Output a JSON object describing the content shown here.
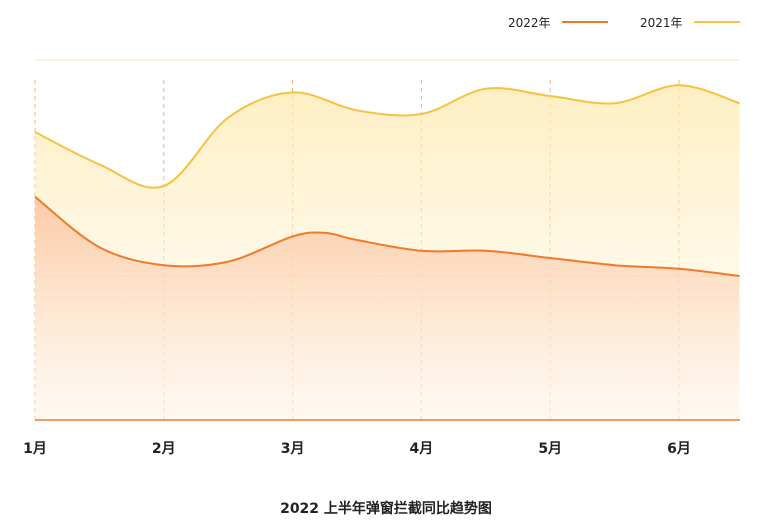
{
  "chart_data": {
    "type": "area",
    "title": "2022 上半年弹窗拦截同比趋势图",
    "xlabel": "",
    "ylabel": "",
    "categories": [
      "1月",
      "2月",
      "3月",
      "4月",
      "5月",
      "6月"
    ],
    "ylim": [
      0,
      100
    ],
    "grid": true,
    "legend_position": "top-right",
    "series": [
      {
        "name": "2022年",
        "color": "#f07a2c",
        "x": [
          0,
          0.5,
          1,
          1.5,
          2,
          2.25,
          2.5,
          3,
          3.5,
          4,
          4.5,
          5,
          5.47
        ],
        "y": [
          62,
          48,
          43,
          44,
          51,
          52,
          50,
          47,
          47,
          45,
          43,
          42,
          40
        ]
      },
      {
        "name": "2021年",
        "color": "#f5c242",
        "x": [
          0,
          0.5,
          1,
          1.5,
          2,
          2.5,
          3,
          3.5,
          4,
          4.5,
          5,
          5.47
        ],
        "y": [
          80,
          71,
          65,
          84,
          91,
          86,
          85,
          92,
          90,
          88,
          93,
          88
        ]
      }
    ]
  }
}
